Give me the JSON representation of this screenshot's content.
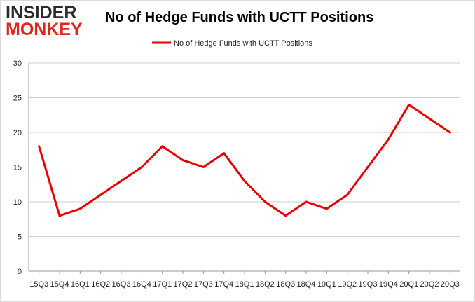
{
  "logo": {
    "line1": "INSIDER",
    "line2": "MONKEY"
  },
  "colors": {
    "series": "#e60000",
    "grid": "#cfcfcf",
    "axis": "#999999",
    "logo_red": "#e1251b"
  },
  "chart_data": {
    "type": "line",
    "title": "No of Hedge Funds with UCTT Positions",
    "xlabel": "",
    "ylabel": "",
    "ylim": [
      0,
      30
    ],
    "yticks": [
      0,
      5,
      10,
      15,
      20,
      25,
      30
    ],
    "grid": "horizontal",
    "legend": "top-center",
    "categories": [
      "15Q3",
      "15Q4",
      "16Q1",
      "16Q2",
      "16Q3",
      "16Q4",
      "17Q1",
      "17Q2",
      "17Q3",
      "17Q4",
      "18Q1",
      "18Q2",
      "18Q3",
      "18Q4",
      "19Q1",
      "19Q2",
      "19Q3",
      "19Q4",
      "20Q1",
      "20Q2",
      "20Q3"
    ],
    "series": [
      {
        "name": "No of Hedge Funds with UCTT Positions",
        "values": [
          18,
          8,
          9,
          11,
          13,
          15,
          18,
          16,
          15,
          17,
          13,
          10,
          8,
          10,
          9,
          11,
          15,
          19,
          24,
          22,
          20
        ]
      }
    ]
  }
}
